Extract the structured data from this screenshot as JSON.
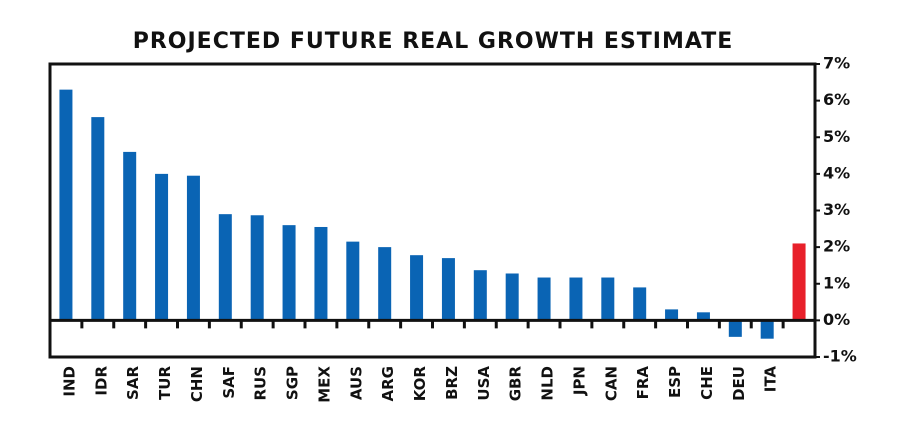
{
  "chart_data": {
    "type": "bar",
    "title": "PROJECTED FUTURE REAL GROWTH ESTIMATE",
    "categories": [
      "IND",
      "IDR",
      "SAR",
      "TUR",
      "CHN",
      "SAF",
      "RUS",
      "SGP",
      "MEX",
      "AUS",
      "ARG",
      "KOR",
      "BRZ",
      "USA",
      "GBR",
      "NLD",
      "JPN",
      "CAN",
      "FRA",
      "ESP",
      "CHE",
      "DEU",
      "ITA",
      null
    ],
    "values": [
      6.3,
      5.55,
      4.6,
      4.0,
      3.95,
      2.9,
      2.87,
      2.6,
      2.55,
      2.15,
      2.0,
      1.78,
      1.7,
      1.37,
      1.28,
      1.17,
      1.17,
      1.17,
      0.9,
      0.3,
      0.22,
      -0.45,
      -0.5,
      2.1
    ],
    "colors": [
      "#0a64b4",
      "#0a64b4",
      "#0a64b4",
      "#0a64b4",
      "#0a64b4",
      "#0a64b4",
      "#0a64b4",
      "#0a64b4",
      "#0a64b4",
      "#0a64b4",
      "#0a64b4",
      "#0a64b4",
      "#0a64b4",
      "#0a64b4",
      "#0a64b4",
      "#0a64b4",
      "#0a64b4",
      "#0a64b4",
      "#0a64b4",
      "#0a64b4",
      "#0a64b4",
      "#0a64b4",
      "#0a64b4",
      "#e8202a"
    ],
    "ylim": [
      -1,
      7
    ],
    "yticks": [
      {
        "value": -1,
        "label": "-1%"
      },
      {
        "value": 0,
        "label": "0%"
      },
      {
        "value": 1,
        "label": "1%"
      },
      {
        "value": 2,
        "label": "2%"
      },
      {
        "value": 3,
        "label": "3%"
      },
      {
        "value": 4,
        "label": "4%"
      },
      {
        "value": 5,
        "label": "5%"
      },
      {
        "value": 6,
        "label": "6%"
      },
      {
        "value": 7,
        "label": "7%"
      }
    ],
    "y_axis_side": "right"
  }
}
